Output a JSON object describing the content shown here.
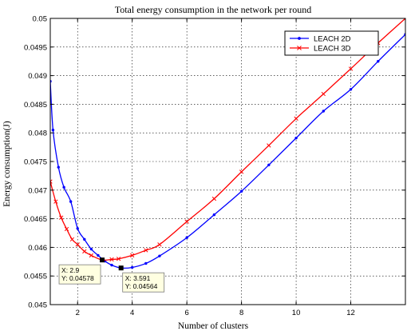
{
  "chart_data": {
    "type": "line",
    "title": "Total energy consumption in the network per round",
    "xlabel": "Number of clusters",
    "ylabel": "Energy consumption(J)",
    "xlim": [
      1,
      14
    ],
    "ylim": [
      0.045,
      0.05
    ],
    "xticks": [
      2,
      4,
      6,
      8,
      10,
      12
    ],
    "yticks": [
      0.045,
      0.0455,
      0.046,
      0.0465,
      0.047,
      0.0475,
      0.048,
      0.0485,
      0.049,
      0.0495,
      0.05
    ],
    "grid": true,
    "legend_position": "top-right",
    "series": [
      {
        "name": "LEACH 2D",
        "color": "#0000ff",
        "marker": "dot",
        "x": [
          1.0,
          1.1,
          1.3,
          1.5,
          1.75,
          2.0,
          2.25,
          2.5,
          2.75,
          3.0,
          3.25,
          3.591,
          4.0,
          4.5,
          5.0,
          6.0,
          7.0,
          8.0,
          9.0,
          10.0,
          11.0,
          12.0,
          13.0,
          14.0
        ],
        "y": [
          0.0489,
          0.04805,
          0.0474,
          0.04705,
          0.0468,
          0.04633,
          0.04614,
          0.04597,
          0.04586,
          0.04576,
          0.04569,
          0.04564,
          0.04565,
          0.04572,
          0.04585,
          0.04617,
          0.04657,
          0.04698,
          0.04744,
          0.04791,
          0.04838,
          0.04876,
          0.04925,
          0.04972
        ]
      },
      {
        "name": "LEACH 3D",
        "color": "#ff0000",
        "marker": "x",
        "x": [
          1.0,
          1.2,
          1.4,
          1.6,
          1.8,
          2.0,
          2.25,
          2.5,
          2.9,
          3.25,
          3.5,
          4.0,
          4.5,
          5.0,
          6.0,
          7.0,
          8.0,
          9.0,
          10.0,
          11.0,
          12.0,
          13.0,
          14.0
        ],
        "y": [
          0.04715,
          0.0468,
          0.04652,
          0.04632,
          0.04614,
          0.04605,
          0.04593,
          0.04586,
          0.04578,
          0.04579,
          0.0458,
          0.04586,
          0.04595,
          0.04605,
          0.04645,
          0.04685,
          0.04732,
          0.04778,
          0.04825,
          0.04868,
          0.04912,
          0.04957,
          0.05
        ]
      }
    ],
    "datatips": [
      {
        "series": "LEACH 3D",
        "x": 2.9,
        "y": 0.04578,
        "lines": [
          "X: 2.9",
          "Y: 0.04578"
        ],
        "anchor": "left-below"
      },
      {
        "series": "LEACH 2D",
        "x": 3.591,
        "y": 0.04564,
        "lines": [
          "X: 3.591",
          "Y: 0.04564"
        ],
        "anchor": "right-below"
      }
    ]
  }
}
